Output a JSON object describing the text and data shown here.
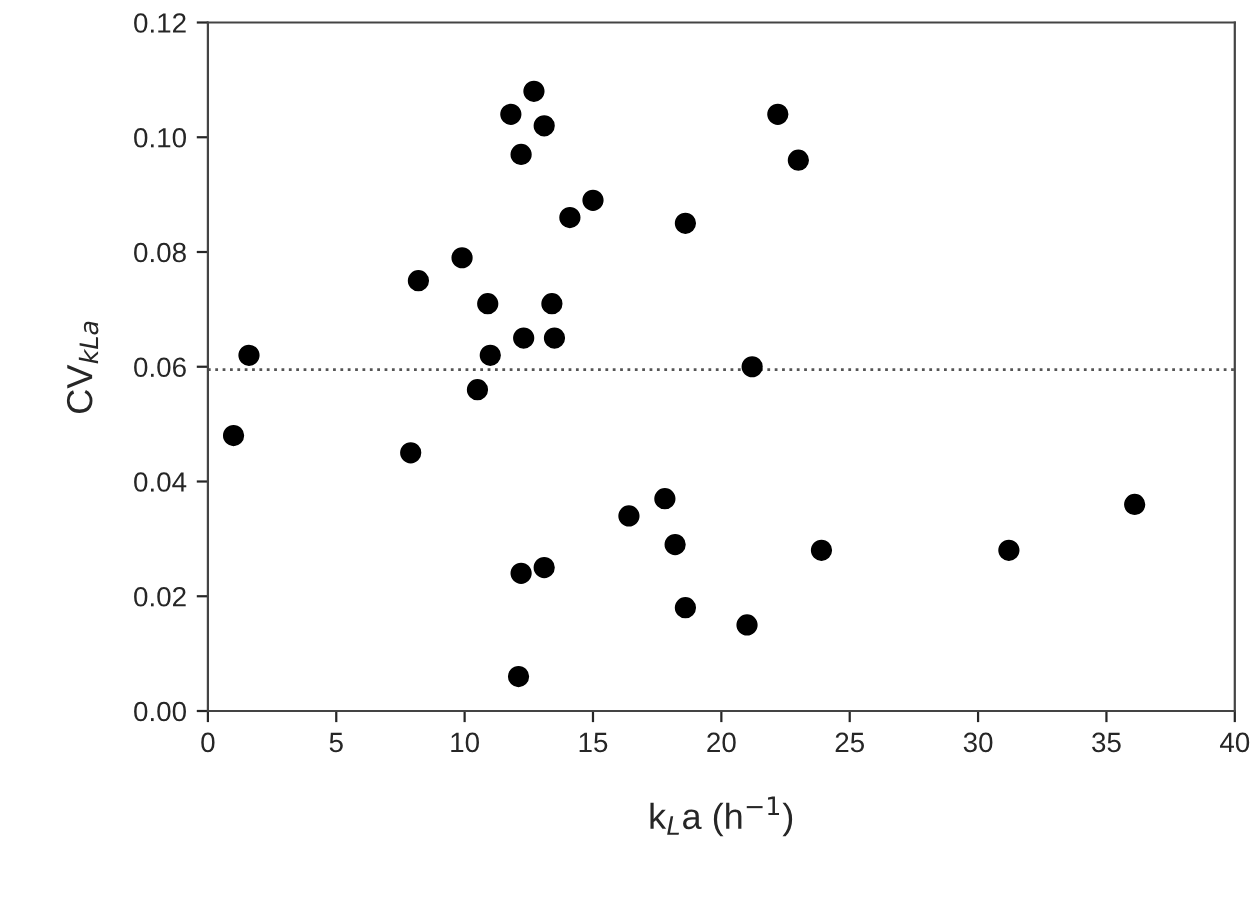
{
  "chart_data": {
    "type": "scatter",
    "xlabel": "k$_{L}$a (h$^{−1}$)",
    "ylabel": "CV$_{kLa}$",
    "x": [
      1.0,
      1.6,
      7.9,
      8.2,
      9.9,
      10.5,
      10.9,
      11.0,
      11.8,
      12.2,
      12.3,
      12.2,
      12.1,
      12.7,
      13.1,
      13.1,
      13.4,
      13.5,
      14.1,
      15.0,
      16.4,
      17.8,
      18.2,
      18.6,
      18.6,
      21.0,
      21.2,
      22.2,
      23.0,
      23.9,
      31.2,
      36.1
    ],
    "series": [
      {
        "color": "#000000",
        "values": [
          0.048,
          0.062,
          0.045,
          0.075,
          0.079,
          0.056,
          0.071,
          0.062,
          0.104,
          0.097,
          0.065,
          0.024,
          0.006,
          0.108,
          0.102,
          0.025,
          0.071,
          0.065,
          0.086,
          0.089,
          0.034,
          0.037,
          0.029,
          0.085,
          0.018,
          0.015,
          0.06,
          0.104,
          0.096,
          0.028,
          0.028,
          0.036
        ]
      }
    ],
    "marker": "circle",
    "grid": false,
    "legend": false,
    "xlim": [
      0,
      40
    ],
    "xticks": [
      0,
      5,
      10,
      15,
      20,
      25,
      30,
      35,
      40
    ],
    "ylim": [
      0,
      0.12
    ],
    "yticks": [
      {
        "value": 0,
        "label": "0.00"
      },
      {
        "value": 0.02,
        "label": "0.02"
      },
      {
        "value": 0.04,
        "label": "0.04"
      },
      {
        "value": 0.06,
        "label": "0.06"
      },
      {
        "value": 0.08,
        "label": "0.08"
      },
      {
        "value": 0.1,
        "label": "0.10"
      },
      {
        "value": 0.12,
        "label": "0.12"
      }
    ],
    "ref_lines": [
      {
        "axis": "y",
        "value": 0.0595,
        "color": "#555555",
        "line_style": "dotted"
      }
    ]
  }
}
